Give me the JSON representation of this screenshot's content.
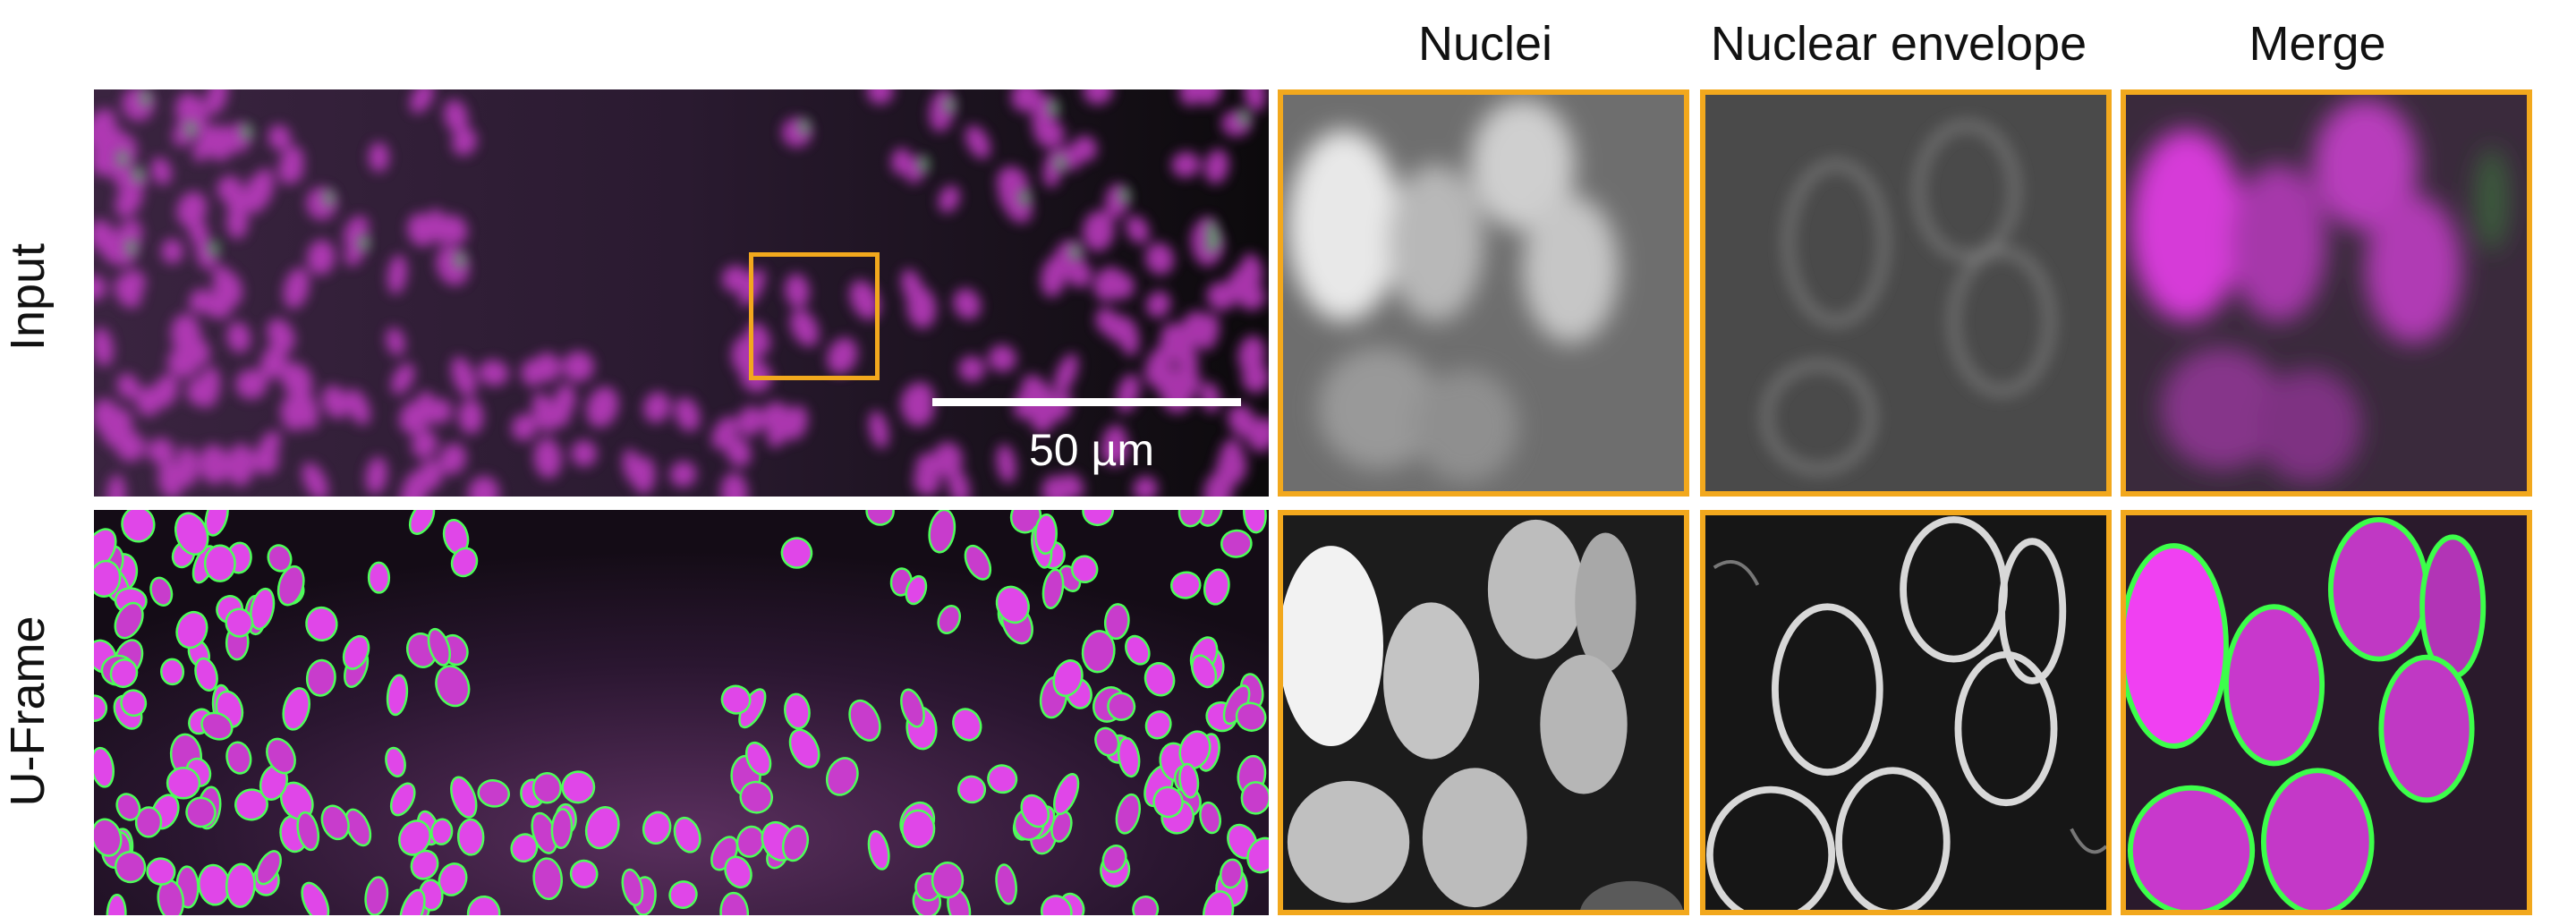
{
  "column_headers": [
    "Nuclei",
    "Nuclear envelope",
    "Merge"
  ],
  "row_labels": [
    "Input",
    "U-Frame"
  ],
  "scale_bar": {
    "label": "50 µm"
  },
  "colors": {
    "nuclei_channel": "#e040e8",
    "envelope_channel": "#3cff4a",
    "roi_frame": "#f2a81d",
    "background": "#ffffff"
  }
}
